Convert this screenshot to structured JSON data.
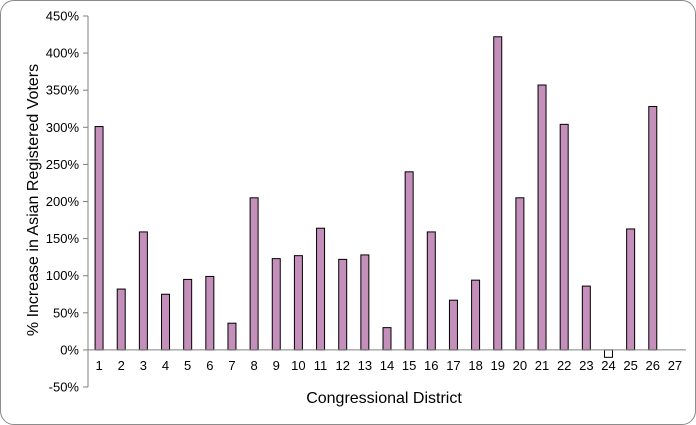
{
  "chart_data": {
    "type": "bar",
    "title": "",
    "xlabel": "Congressional District",
    "ylabel": "% Increase in Asian Registered Voters",
    "ylim": [
      -50,
      450
    ],
    "yticks": [
      "-50%",
      "0%",
      "50%",
      "100%",
      "150%",
      "200%",
      "250%",
      "300%",
      "350%",
      "400%",
      "450%"
    ],
    "categories": [
      "1",
      "2",
      "3",
      "4",
      "5",
      "6",
      "7",
      "8",
      "9",
      "10",
      "11",
      "12",
      "13",
      "14",
      "15",
      "16",
      "17",
      "18",
      "19",
      "20",
      "21",
      "22",
      "23",
      "24",
      "25",
      "26",
      "27"
    ],
    "values": [
      301,
      82,
      159,
      75,
      95,
      99,
      36,
      205,
      123,
      127,
      164,
      122,
      128,
      30,
      240,
      159,
      67,
      94,
      422,
      205,
      357,
      304,
      86,
      -10,
      163,
      328,
      0
    ],
    "grid": false,
    "legend": "none",
    "colors": {
      "bar_fill": "#c58fbc",
      "bar_stroke": "#000000",
      "axis": "#808080"
    }
  }
}
